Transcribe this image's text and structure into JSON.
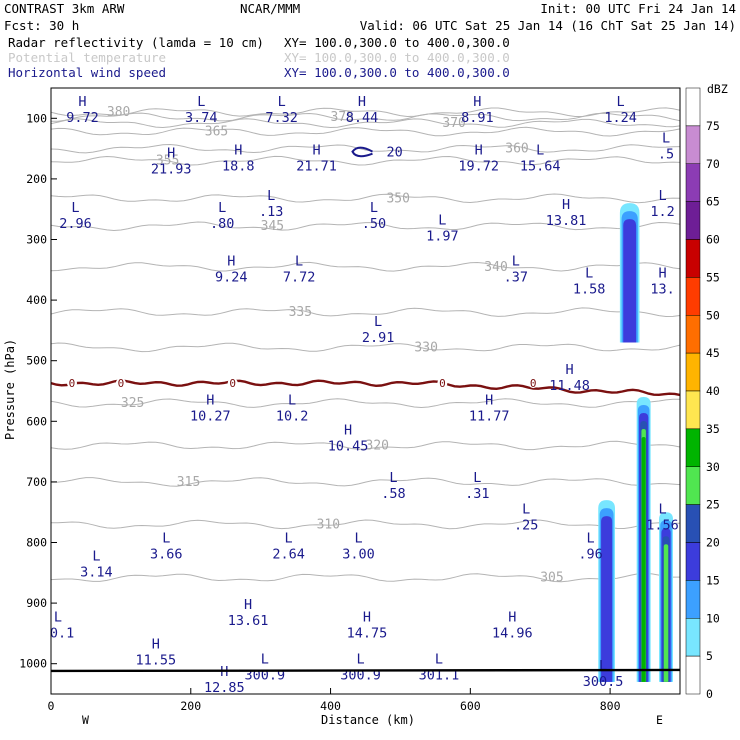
{
  "header": {
    "line1_left": "CONTRAST  3km ARW",
    "line1_mid": "NCAR/MMM",
    "line1_right": "Init: 00 UTC Fri 24 Jan 14",
    "line2_left": "Fcst:    30 h",
    "line2_right": "Valid: 06 UTC Sat 25 Jan 14 (16 ChT Sat 25 Jan 14)",
    "fields": [
      {
        "name": "Radar reflectivity (lamda = 10 cm)",
        "xy": "XY= 100.0,300.0 to 400.0,300.0",
        "color": "#000000"
      },
      {
        "name": "Potential temperature",
        "xy": "XY= 100.0,300.0 to 400.0,300.0",
        "color": "#c8c8c8"
      },
      {
        "name": "Horizontal wind speed",
        "xy": "XY= 100.0,300.0 to 400.0,300.0",
        "color": "#1a1a8c"
      }
    ]
  },
  "chart_data": {
    "type": "cross-section",
    "xlabel": "Distance (km)",
    "ylabel": "Pressure (hPa)",
    "xlim": [
      0,
      900
    ],
    "ylim": [
      1050,
      50
    ],
    "xticks": [
      "0",
      "200",
      "400",
      "600",
      "800"
    ],
    "xtick_values": [
      0,
      200,
      400,
      600,
      800
    ],
    "yticks": [
      "100",
      "200",
      "300",
      "400",
      "500",
      "600",
      "700",
      "800",
      "900",
      "1000"
    ],
    "ytick_values": [
      100,
      200,
      300,
      400,
      500,
      600,
      700,
      800,
      900,
      1000
    ],
    "side_left": "W",
    "side_right": "E",
    "colorbar": {
      "title": "dBZ",
      "levels": [
        "75",
        "70",
        "65",
        "60",
        "55",
        "50",
        "45",
        "40",
        "35",
        "30",
        "25",
        "20",
        "15",
        "10",
        "5",
        "0"
      ],
      "colors": [
        "#ffffff",
        "#c88cd2",
        "#8c3cb4",
        "#6e1e96",
        "#c80000",
        "#ff3c00",
        "#ff6e00",
        "#ffb400",
        "#ffe650",
        "#00b400",
        "#50e650",
        "#2850b4",
        "#3c3cdc",
        "#3ca0ff",
        "#78e6ff",
        "#ffffff"
      ]
    },
    "theta_isentropes": [
      {
        "label": "380",
        "p": 90
      },
      {
        "label": "375",
        "p": 98
      },
      {
        "label": "370",
        "p": 108
      },
      {
        "label": "365",
        "p": 122
      },
      {
        "label": "360",
        "p": 150
      },
      {
        "label": "355",
        "p": 170
      },
      {
        "label": "350",
        "p": 232
      },
      {
        "label": "345",
        "p": 278
      },
      {
        "label": "340",
        "p": 345
      },
      {
        "label": "335",
        "p": 420
      },
      {
        "label": "330",
        "p": 478
      },
      {
        "label": "325",
        "p": 570
      },
      {
        "label": "320",
        "p": 640
      },
      {
        "label": "315",
        "p": 700
      },
      {
        "label": "310",
        "p": 770
      },
      {
        "label": "305",
        "p": 858
      }
    ],
    "zero_degree_line": {
      "label": "0",
      "p": 537
    },
    "wind_extrema": [
      {
        "type": "H",
        "value": "9.72",
        "x": 45,
        "p": 80
      },
      {
        "type": "L",
        "value": "3.74",
        "x": 215,
        "p": 80
      },
      {
        "type": "L",
        "value": "7.32",
        "x": 330,
        "p": 80
      },
      {
        "type": "H",
        "value": "8.44",
        "x": 445,
        "p": 80
      },
      {
        "type": "H",
        "value": "8.91",
        "x": 610,
        "p": 80
      },
      {
        "type": "L",
        "value": "1.24",
        "x": 815,
        "p": 80
      },
      {
        "type": "H",
        "value": "21.93",
        "x": 172,
        "p": 165
      },
      {
        "type": "H",
        "value": "18.8",
        "x": 268,
        "p": 160
      },
      {
        "type": "H",
        "value": "21.71",
        "x": 380,
        "p": 160
      },
      {
        "type": "H",
        "value": "19.72",
        "x": 612,
        "p": 160
      },
      {
        "type": "L",
        "value": "15.64",
        "x": 700,
        "p": 160
      },
      {
        "type": "L",
        "value": ".5",
        "x": 880,
        "p": 140
      },
      {
        "type": "L",
        "value": "2.96",
        "x": 35,
        "p": 255
      },
      {
        "type": "L",
        "value": ".80",
        "x": 245,
        "p": 255
      },
      {
        "type": "L",
        "value": ".13",
        "x": 315,
        "p": 235
      },
      {
        "type": "L",
        "value": ".50",
        "x": 462,
        "p": 255
      },
      {
        "type": "L",
        "value": "1.97",
        "x": 560,
        "p": 275
      },
      {
        "type": "H",
        "value": "13.81",
        "x": 737,
        "p": 250
      },
      {
        "type": "L",
        "value": "1.2",
        "x": 875,
        "p": 235
      },
      {
        "type": "H",
        "value": "9.24",
        "x": 258,
        "p": 343
      },
      {
        "type": "L",
        "value": "7.72",
        "x": 355,
        "p": 343
      },
      {
        "type": "L",
        "value": ".37",
        "x": 665,
        "p": 343
      },
      {
        "type": "L",
        "value": "1.58",
        "x": 770,
        "p": 363
      },
      {
        "type": "H",
        "value": "13.",
        "x": 875,
        "p": 363
      },
      {
        "type": "L",
        "value": "2.91",
        "x": 468,
        "p": 443
      },
      {
        "type": "H",
        "value": "11.48",
        "x": 742,
        "p": 522
      },
      {
        "type": "H",
        "value": "10.27",
        "x": 228,
        "p": 572
      },
      {
        "type": "L",
        "value": "10.2",
        "x": 345,
        "p": 572
      },
      {
        "type": "H",
        "value": "11.77",
        "x": 627,
        "p": 572
      },
      {
        "type": "H",
        "value": "10.45",
        "x": 425,
        "p": 622
      },
      {
        "type": "L",
        "value": ".58",
        "x": 490,
        "p": 700
      },
      {
        "type": "L",
        "value": ".31",
        "x": 610,
        "p": 700
      },
      {
        "type": "L",
        "value": ".25",
        "x": 680,
        "p": 752
      },
      {
        "type": "L",
        "value": "1.56",
        "x": 875,
        "p": 752
      },
      {
        "type": "L",
        "value": "3.66",
        "x": 165,
        "p": 800
      },
      {
        "type": "L",
        "value": "2.64",
        "x": 340,
        "p": 800
      },
      {
        "type": "L",
        "value": "3.00",
        "x": 440,
        "p": 800
      },
      {
        "type": "L",
        "value": ".96",
        "x": 772,
        "p": 800
      },
      {
        "type": "L",
        "value": "3.14",
        "x": 65,
        "p": 830
      },
      {
        "type": "H",
        "value": "13.61",
        "x": 282,
        "p": 910
      },
      {
        "type": "H",
        "value": "14.75",
        "x": 452,
        "p": 930
      },
      {
        "type": "H",
        "value": "14.96",
        "x": 660,
        "p": 930
      },
      {
        "type": "L",
        "value": "00.1",
        "x": 10,
        "p": 930
      },
      {
        "type": "H",
        "value": "11.55",
        "x": 150,
        "p": 975
      },
      {
        "type": "H",
        "value": "12.85",
        "x": 248,
        "p": 1020
      },
      {
        "type": "L",
        "value": "300.9",
        "x": 306,
        "p": 1000
      },
      {
        "type": "L",
        "value": "300.9",
        "x": 443,
        "p": 1000
      },
      {
        "type": "L",
        "value": "301.1",
        "x": 555,
        "p": 1000
      },
      {
        "type": "L",
        "value": "300.5",
        "x": 790,
        "p": 1010
      }
    ],
    "jet_core_contour": {
      "label": "20"
    },
    "reflectivity_cells": [
      {
        "name": "upper-cell",
        "x_center": 828,
        "x_halfwidth": 14,
        "p_top": 240,
        "p_bottom": 470,
        "max_dbz": 20
      },
      {
        "name": "west-shaft",
        "x_center": 795,
        "x_halfwidth": 12,
        "p_top": 730,
        "p_bottom": 1030,
        "max_dbz": 20
      },
      {
        "name": "main-shaft",
        "x_center": 848,
        "x_halfwidth": 10,
        "p_top": 560,
        "p_bottom": 1030,
        "max_dbz": 35
      },
      {
        "name": "east-shaft",
        "x_center": 880,
        "x_halfwidth": 10,
        "p_top": 750,
        "p_bottom": 1030,
        "max_dbz": 30
      }
    ]
  }
}
